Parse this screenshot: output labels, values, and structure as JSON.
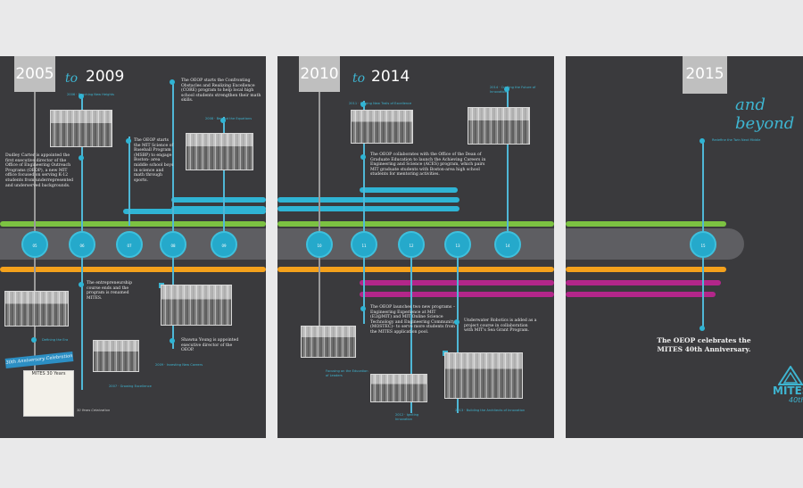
{
  "panel1": {
    "start_year": "2005",
    "to": "to",
    "end_year": "2009",
    "events": {
      "cuses_label": "The OEOP starts the Confronting Obstacles and Realizing Excellence (CORE) program to help local high school students strengthen their math skills.",
      "baseball": "The OEOP starts the MIT Science of Baseball Program (MSBP) to engage Boston- area middle school boys in science and math through sports.",
      "dudley": "Dudley Carter is appointed the first executive director of the Office of Engineering Outreach Programs (OEOP), a new MIT office focused on serving K-12 students from underrepresented and underserved backgrounds.",
      "entrepreneurship": "The entrepreneurship course ends and the program is renamed MITES.",
      "shawna": "Shawna Young is appointed executive director of the OEOP."
    },
    "labels": {
      "l2006": "2006 · Reaching New Heights",
      "l2008": "2008 · Beyond the Equations",
      "l_defining": "Defining the Era",
      "l_2007": "2007 · Growing Excellence",
      "l_2009": "2009 · Investing New Careers",
      "caption": "30 Years Celebration"
    },
    "circle_labels": [
      "05",
      "06",
      "07",
      "08",
      "09"
    ],
    "banner": "30th Anniversary Celebration",
    "poster": "MITES 30 Years"
  },
  "panel2": {
    "start_year": "2010",
    "to": "to",
    "end_year": "2014",
    "events": {
      "aces": "The OEOP collaborates with the Office of the Dean of Graduate Education to launch the Achieving Careers in Engineering and Science (ACES) program, which pairs MIT graduate students with Boston-area high school students for mentoring activities.",
      "e2": "The OEOP launches two new programs – Engineering Experience at MIT (E2@MIT) and MIT Online Science Technology and Engineering Community (MOSTEC)– to serve more students from the MITES application pool.",
      "robotics": "Underwater Robotics is added as a project course in collaboration with MIT's Sea Grant Program."
    },
    "labels": {
      "l2011": "2011 · Forging New Trails of Excellence",
      "l2014": "2014 · Crafting the Future of Innovation",
      "l_focus": "Focusing on the Education of Leaders",
      "l_2012": "2012 · Igniting Innovation",
      "l_2013": "2013 · Building the Architects of Innovation"
    },
    "circle_labels": [
      "10",
      "11",
      "12",
      "13",
      "14"
    ]
  },
  "panel3": {
    "start_year": "2015",
    "beyond": "and beyond",
    "label": "Redefine the Twin Next Middle",
    "circle_label": "15",
    "celebrate": "The OEOP celebrates the MITES 40th Anniversary.",
    "logo": "MITES",
    "logo_sub": "40th"
  },
  "colors": {
    "panel_bg": "#3a3a3d",
    "page_bg": "#e9e9ea",
    "accent_blue": "#2fb4d4",
    "green": "#7cc242",
    "orange": "#f4a11c",
    "magenta": "#b3268a"
  }
}
